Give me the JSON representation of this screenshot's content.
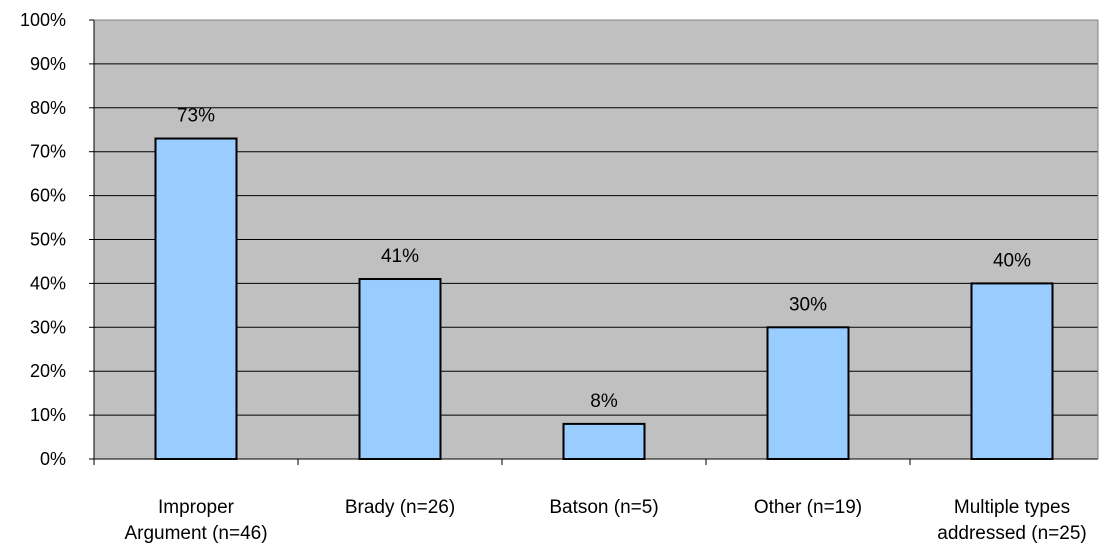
{
  "chart_data": {
    "type": "bar",
    "categories": [
      [
        "Improper",
        "Argument (n=46)"
      ],
      [
        "Brady (n=26)"
      ],
      [
        "Batson (n=5)"
      ],
      [
        "Other (n=19)"
      ],
      [
        "Multiple types",
        "addressed (n=25)"
      ]
    ],
    "values": [
      73,
      41,
      8,
      30,
      40
    ],
    "data_labels": [
      "73%",
      "41%",
      "8%",
      "30%",
      "40%"
    ],
    "ylim": [
      0,
      100
    ],
    "y_ticks": [
      0,
      10,
      20,
      30,
      40,
      50,
      60,
      70,
      80,
      90,
      100
    ],
    "y_tick_labels": [
      "0%",
      "10%",
      "20%",
      "30%",
      "40%",
      "50%",
      "60%",
      "70%",
      "80%",
      "90%",
      "100%"
    ],
    "grid": true,
    "colors": {
      "plot_background": "#c0c0c0",
      "bar_fill": "#99ccff",
      "bar_stroke": "#000000",
      "gridline": "#000000"
    }
  }
}
